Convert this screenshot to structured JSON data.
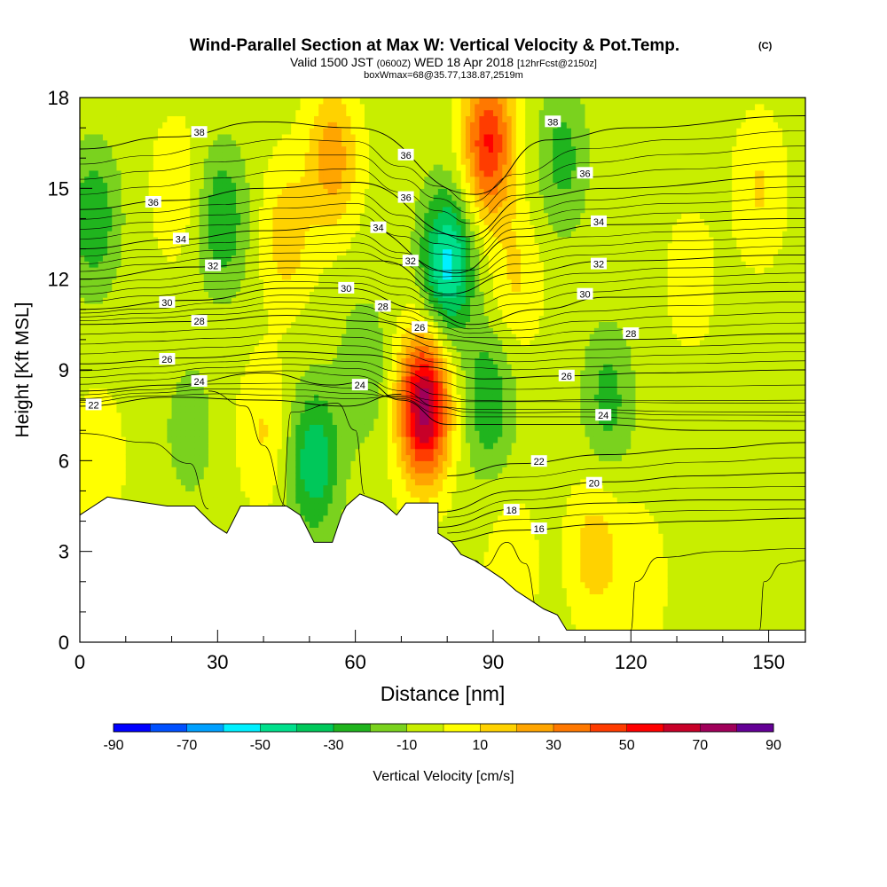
{
  "title": {
    "main": "Wind-Parallel Section at Max W: Vertical Velocity & Pot.Temp.",
    "copyright": "(C)",
    "valid_pre": "Valid 1500 JST",
    "valid_utc": "(0600Z)",
    "valid_post": "WED 18 Apr 2018",
    "forecast": "[12hrFcst@2150z]",
    "box": "boxWmax=68@35.77,138.87,2519m"
  },
  "chart_data": {
    "type": "heatmap",
    "xlabel": "Distance [nm]",
    "ylabel": "Height [Kft MSL]",
    "xlim": [
      0,
      158
    ],
    "ylim": [
      0,
      18
    ],
    "x_ticks": [
      0,
      30,
      60,
      90,
      120,
      150
    ],
    "y_ticks": [
      0,
      3,
      6,
      9,
      12,
      15,
      18
    ],
    "colorbar": {
      "label": "Vertical Velocity [cm/s]",
      "tick_labels": [
        "-90",
        "-70",
        "-50",
        "-30",
        "-10",
        "10",
        "30",
        "50",
        "70",
        "90"
      ],
      "levels": [
        -90,
        -80,
        -70,
        -60,
        -50,
        -40,
        -30,
        -20,
        -10,
        0,
        10,
        20,
        30,
        40,
        50,
        60,
        70,
        80,
        90
      ],
      "colors": [
        "#0000ff",
        "#0050ff",
        "#00a0ff",
        "#00f0ff",
        "#00e08c",
        "#00c85a",
        "#20b41e",
        "#7ad21e",
        "#c8ee00",
        "#ffff00",
        "#ffd200",
        "#ffa500",
        "#ff7800",
        "#ff3c00",
        "#ff0000",
        "#c80028",
        "#a0005a",
        "#640096"
      ]
    },
    "terrain_kft": [
      [
        0,
        4.2
      ],
      [
        3,
        4.5
      ],
      [
        6,
        4.8
      ],
      [
        19,
        4.5
      ],
      [
        25,
        4.5
      ],
      [
        29,
        3.9
      ],
      [
        32,
        3.6
      ],
      [
        35,
        4.5
      ],
      [
        45,
        4.5
      ],
      [
        48,
        4.2
      ],
      [
        51,
        3.3
      ],
      [
        55,
        3.3
      ],
      [
        57,
        4.2
      ],
      [
        58,
        4.5
      ],
      [
        61,
        4.9
      ],
      [
        66,
        4.6
      ],
      [
        69,
        4.2
      ],
      [
        71,
        4.6
      ],
      [
        78,
        4.6
      ],
      [
        78,
        3.6
      ],
      [
        81,
        3.3
      ],
      [
        83,
        2.9
      ],
      [
        86,
        2.7
      ],
      [
        89,
        2.4
      ],
      [
        92,
        2.1
      ],
      [
        95,
        1.7
      ],
      [
        98,
        1.4
      ],
      [
        101,
        1.1
      ],
      [
        104,
        0.9
      ],
      [
        106,
        0.4
      ],
      [
        158,
        0.4
      ]
    ],
    "w_anomalies": [
      {
        "x": 75,
        "y": 7.8,
        "w": 80
      },
      {
        "x": 89,
        "y": 16.5,
        "w": 55
      },
      {
        "x": 80,
        "y": 12.5,
        "w": -50
      },
      {
        "x": 51,
        "y": 6.0,
        "w": -35
      },
      {
        "x": 55,
        "y": 16.0,
        "w": 30
      },
      {
        "x": 31,
        "y": 14.0,
        "w": -25
      },
      {
        "x": 45,
        "y": 13.5,
        "w": 20
      },
      {
        "x": 3,
        "y": 14.0,
        "w": -25
      },
      {
        "x": 21,
        "y": 15.0,
        "w": 12
      },
      {
        "x": 95,
        "y": 12.0,
        "w": 15
      },
      {
        "x": 105,
        "y": 16.0,
        "w": -20
      },
      {
        "x": 89,
        "y": 8.0,
        "w": -25
      },
      {
        "x": 115,
        "y": 8.0,
        "w": -20
      },
      {
        "x": 112,
        "y": 3.0,
        "w": 20
      },
      {
        "x": 122,
        "y": 2.0,
        "w": 12
      },
      {
        "x": 40,
        "y": 7.0,
        "w": 15
      },
      {
        "x": 24,
        "y": 7.0,
        "w": -12
      },
      {
        "x": 148,
        "y": 15.0,
        "w": 15
      },
      {
        "x": 62,
        "y": 9.0,
        "w": -15
      },
      {
        "x": 94,
        "y": 2.5,
        "w": 12
      },
      {
        "x": 133,
        "y": 12.0,
        "w": 10
      },
      {
        "x": 4,
        "y": 6.0,
        "w": 12
      }
    ],
    "isentropes": [
      {
        "level": 16,
        "label": "16",
        "label_x": 100,
        "points": [
          [
            78,
            3.3
          ],
          [
            95,
            3.7
          ],
          [
            115,
            3.9
          ],
          [
            135,
            4.0
          ],
          [
            158,
            4.1
          ]
        ]
      },
      {
        "level": 18,
        "label": "18",
        "label_x": 94,
        "points": [
          [
            78,
            3.8
          ],
          [
            95,
            4.4
          ],
          [
            115,
            4.6
          ],
          [
            135,
            4.7
          ],
          [
            158,
            4.7
          ]
        ]
      },
      {
        "level": 20,
        "label": "20",
        "label_x": 112,
        "points": [
          [
            78,
            4.3
          ],
          [
            95,
            5.0
          ],
          [
            115,
            5.3
          ],
          [
            135,
            5.5
          ],
          [
            158,
            5.6
          ]
        ]
      },
      {
        "level": 22,
        "label": "22",
        "label_x": 100,
        "points": [
          [
            80,
            5.5
          ],
          [
            95,
            5.9
          ],
          [
            115,
            6.2
          ],
          [
            135,
            6.4
          ],
          [
            158,
            6.6
          ]
        ]
      },
      {
        "level": 22,
        "label": "22",
        "label_x": 3,
        "points": [
          [
            0,
            7.8
          ],
          [
            20,
            8.1
          ],
          [
            40,
            8.0
          ],
          [
            58,
            7.8
          ],
          [
            70,
            8.2
          ]
        ]
      },
      {
        "level": 24,
        "label": "24",
        "label_x": 26,
        "points": [
          [
            0,
            8.3
          ],
          [
            20,
            8.5
          ],
          [
            40,
            8.9
          ],
          [
            55,
            8.5
          ],
          [
            62,
            8.6
          ],
          [
            70,
            8.0
          ],
          [
            80,
            7.2
          ],
          [
            95,
            7.2
          ],
          [
            112,
            7.2
          ],
          [
            135,
            7.0
          ],
          [
            158,
            7.0
          ]
        ]
      },
      {
        "level": 26,
        "label": "26",
        "label_x": 19,
        "points": [
          [
            0,
            9.2
          ],
          [
            25,
            9.4
          ],
          [
            45,
            9.6
          ],
          [
            62,
            9.5
          ],
          [
            75,
            9.1
          ],
          [
            88,
            8.7
          ],
          [
            105,
            8.8
          ],
          [
            125,
            8.9
          ],
          [
            158,
            9.0
          ]
        ]
      },
      {
        "level": 28,
        "label": "28",
        "label_x": 26,
        "points": [
          [
            0,
            10.5
          ],
          [
            25,
            10.6
          ],
          [
            45,
            10.8
          ],
          [
            64,
            10.6
          ],
          [
            78,
            10.0
          ],
          [
            95,
            9.8
          ],
          [
            115,
            10.0
          ],
          [
            158,
            10.2
          ]
        ]
      },
      {
        "level": 30,
        "label": "30",
        "label_x": 19,
        "points": [
          [
            0,
            11.0
          ],
          [
            25,
            11.3
          ],
          [
            45,
            11.7
          ],
          [
            58,
            11.7
          ],
          [
            75,
            11.0
          ],
          [
            85,
            10.5
          ],
          [
            100,
            11.0
          ],
          [
            115,
            11.4
          ],
          [
            158,
            11.6
          ]
        ]
      },
      {
        "level": 32,
        "label": "32",
        "label_x": 29,
        "points": [
          [
            0,
            12.0
          ],
          [
            25,
            12.4
          ],
          [
            45,
            12.6
          ],
          [
            66,
            12.6
          ],
          [
            80,
            11.5
          ],
          [
            95,
            12.2
          ],
          [
            115,
            12.6
          ],
          [
            158,
            12.8
          ]
        ]
      },
      {
        "level": 34,
        "label": "34",
        "label_x": 22,
        "points": [
          [
            0,
            13.0
          ],
          [
            20,
            13.3
          ],
          [
            40,
            13.6
          ],
          [
            60,
            13.8
          ],
          [
            82,
            12.2
          ],
          [
            95,
            13.4
          ],
          [
            115,
            13.8
          ],
          [
            158,
            14.0
          ]
        ]
      },
      {
        "level": 36,
        "label": "36",
        "label_x": 16,
        "points": [
          [
            0,
            14.3
          ],
          [
            20,
            14.6
          ],
          [
            40,
            15.0
          ],
          [
            60,
            15.2
          ],
          [
            84,
            13.4
          ],
          [
            98,
            14.7
          ],
          [
            115,
            15.0
          ],
          [
            158,
            15.4
          ]
        ]
      },
      {
        "level": 38,
        "label": "38",
        "label_x": 26,
        "points": [
          [
            0,
            16.3
          ],
          [
            20,
            16.7
          ],
          [
            40,
            17.2
          ],
          [
            60,
            17.0
          ],
          [
            86,
            14.8
          ],
          [
            102,
            16.6
          ],
          [
            120,
            17.0
          ],
          [
            158,
            17.4
          ]
        ]
      }
    ],
    "extra_labels": [
      {
        "label": "36",
        "x": 71,
        "y": 16.1
      },
      {
        "label": "36",
        "x": 71,
        "y": 14.7
      },
      {
        "label": "34",
        "x": 65,
        "y": 13.7
      },
      {
        "label": "32",
        "x": 72,
        "y": 12.6
      },
      {
        "label": "30",
        "x": 58,
        "y": 11.7
      },
      {
        "label": "28",
        "x": 66,
        "y": 11.1
      },
      {
        "label": "26",
        "x": 74,
        "y": 10.4
      },
      {
        "label": "24",
        "x": 61,
        "y": 8.5
      },
      {
        "label": "38",
        "x": 103,
        "y": 17.2
      },
      {
        "label": "36",
        "x": 110,
        "y": 15.5
      },
      {
        "label": "34",
        "x": 113,
        "y": 13.9
      },
      {
        "label": "32",
        "x": 113,
        "y": 12.5
      },
      {
        "label": "30",
        "x": 110,
        "y": 11.5
      },
      {
        "label": "28",
        "x": 120,
        "y": 10.2
      },
      {
        "label": "26",
        "x": 106,
        "y": 8.8
      },
      {
        "label": "24",
        "x": 114,
        "y": 7.5
      }
    ]
  }
}
